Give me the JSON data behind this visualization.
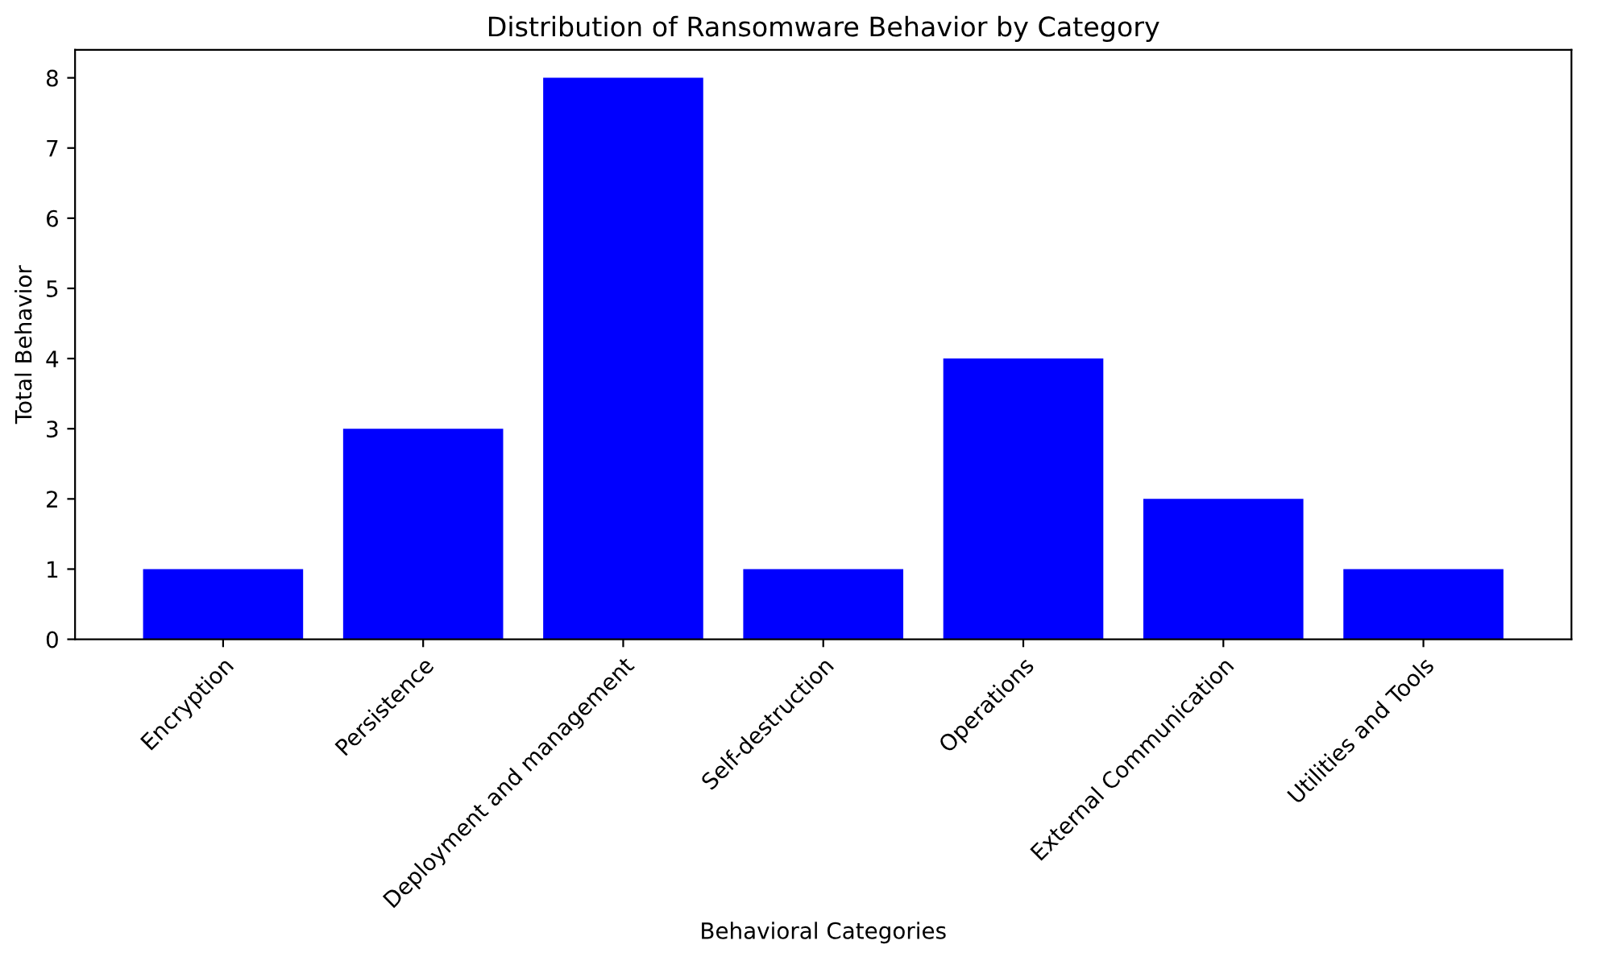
{
  "chart_data": {
    "type": "bar",
    "title": "Distribution of Ransomware Behavior by Category",
    "xlabel": "Behavioral Categories",
    "ylabel": "Total Behavior",
    "categories": [
      "Encryption",
      "Persistence",
      "Deployment and management",
      "Self-destruction",
      "Operations",
      "External Communication",
      "Utilities and Tools"
    ],
    "values": [
      1,
      3,
      8,
      1,
      4,
      2,
      1
    ],
    "color": "#0000ff",
    "ylim": [
      0,
      8.4
    ],
    "yticks": [
      0,
      1,
      2,
      3,
      4,
      5,
      6,
      7,
      8
    ],
    "grid": false,
    "legend": false
  }
}
